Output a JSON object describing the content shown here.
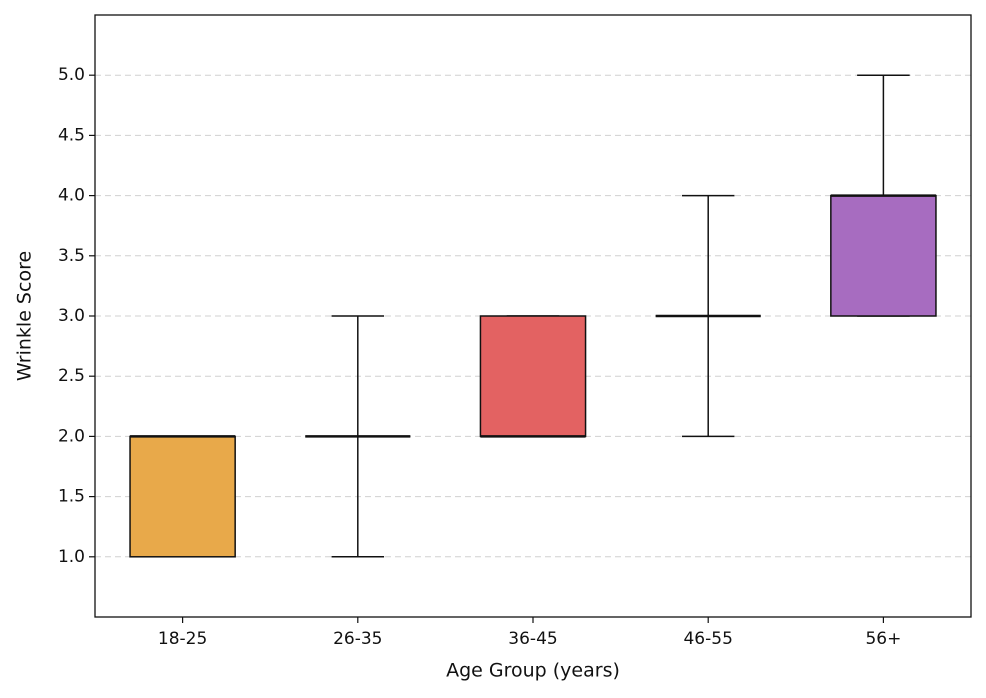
{
  "chart_data": {
    "type": "box",
    "xlabel": "Age Group (years)",
    "ylabel": "Wrinkle Score",
    "categories": [
      "18-25",
      "26-35",
      "36-45",
      "46-55",
      "56+"
    ],
    "boxes": [
      {
        "min": 1,
        "q1": 1,
        "median": 2,
        "q3": 2,
        "max": 2,
        "color": "#e8a94a"
      },
      {
        "min": 1,
        "q1": 2,
        "median": 2,
        "q3": 2,
        "max": 3,
        "color": null
      },
      {
        "min": 2,
        "q1": 2,
        "median": 2,
        "q3": 3,
        "max": 3,
        "color": "#e36262"
      },
      {
        "min": 2,
        "q1": 3,
        "median": 3,
        "q3": 3,
        "max": 4,
        "color": null
      },
      {
        "min": 3,
        "q1": 3,
        "median": 4,
        "q3": 4,
        "max": 5,
        "color": "#a76cc0"
      }
    ],
    "ylim": [
      0.5,
      5.5
    ],
    "yticks": [
      {
        "value": 1,
        "label": "1.0"
      },
      {
        "value": 1.5,
        "label": "1.5"
      },
      {
        "value": 2,
        "label": "2.0"
      },
      {
        "value": 2.5,
        "label": "2.5"
      },
      {
        "value": 3,
        "label": "3.0"
      },
      {
        "value": 3.5,
        "label": "3.5"
      },
      {
        "value": 4,
        "label": "4.0"
      },
      {
        "value": 4.5,
        "label": "4.5"
      },
      {
        "value": 5,
        "label": "5.0"
      }
    ],
    "grid": true
  }
}
